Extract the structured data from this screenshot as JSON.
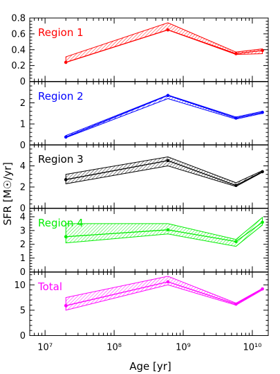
{
  "chart_data": {
    "type": "line",
    "x_scale": "log",
    "xlim": [
      6000000,
      17000000000
    ],
    "xlabel": "Age",
    "xlabel_unit": "[yr]",
    "ylabel": "SFR",
    "ylabel_unit": "[M☉/yr]",
    "x_tick_labels": [
      "10⁷",
      "10⁸",
      "10⁹",
      "10¹⁰"
    ],
    "x": [
      20000000,
      600000000,
      5800000000,
      14000000000
    ],
    "panels": [
      {
        "name": "Region 1",
        "color": "#ff0000",
        "ylim": [
          0,
          0.8
        ],
        "y_ticks": [
          "0",
          "0.2",
          "0.4",
          "0.6",
          "0.8"
        ],
        "values": [
          0.24,
          0.65,
          0.35,
          0.39
        ],
        "band_lower": [
          0.24,
          0.65,
          0.34,
          0.35
        ],
        "band_upper": [
          0.31,
          0.74,
          0.37,
          0.41
        ]
      },
      {
        "name": "Region 2",
        "color": "#0000ff",
        "ylim": [
          0,
          3
        ],
        "y_ticks": [
          "0",
          "1",
          "2"
        ],
        "values": [
          0.38,
          2.35,
          1.28,
          1.55
        ],
        "band_lower": [
          0.35,
          2.2,
          1.23,
          1.5
        ],
        "band_upper": [
          0.45,
          2.37,
          1.33,
          1.6
        ]
      },
      {
        "name": "Region 3",
        "color": "#000000",
        "ylim": [
          0,
          6
        ],
        "y_ticks": [
          "0",
          "2",
          "4"
        ],
        "values": [
          2.7,
          4.5,
          2.15,
          3.45
        ],
        "band_lower": [
          2.3,
          4.0,
          2.05,
          3.4
        ],
        "band_upper": [
          3.2,
          4.85,
          2.4,
          3.55
        ]
      },
      {
        "name": "Region 4",
        "color": "#00ee00",
        "ylim": [
          0,
          4.6
        ],
        "y_ticks": [
          "0",
          "1",
          "2",
          "3",
          "4"
        ],
        "values": [
          2.55,
          3.05,
          2.2,
          3.6
        ],
        "band_lower": [
          2.1,
          2.75,
          1.85,
          3.4
        ],
        "band_upper": [
          3.5,
          3.5,
          2.35,
          3.95
        ]
      },
      {
        "name": "Total",
        "color": "#ff00ff",
        "ylim": [
          0,
          12.5
        ],
        "y_ticks": [
          "0",
          "5",
          "10"
        ],
        "values": [
          5.9,
          10.6,
          6.2,
          9.2
        ],
        "band_lower": [
          5.0,
          10.0,
          6.0,
          9.0
        ],
        "band_upper": [
          7.5,
          11.7,
          6.4,
          9.3
        ]
      }
    ]
  }
}
